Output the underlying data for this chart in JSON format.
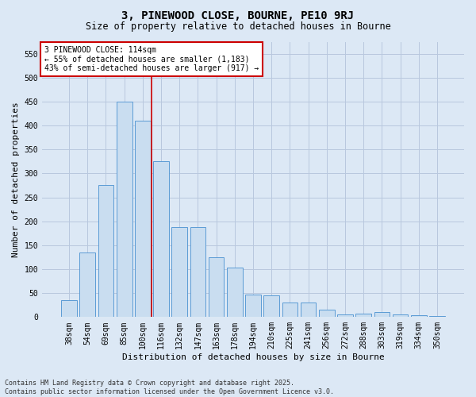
{
  "title1": "3, PINEWOOD CLOSE, BOURNE, PE10 9RJ",
  "title2": "Size of property relative to detached houses in Bourne",
  "xlabel": "Distribution of detached houses by size in Bourne",
  "ylabel": "Number of detached properties",
  "categories": [
    "38sqm",
    "54sqm",
    "69sqm",
    "85sqm",
    "100sqm",
    "116sqm",
    "132sqm",
    "147sqm",
    "163sqm",
    "178sqm",
    "194sqm",
    "210sqm",
    "225sqm",
    "241sqm",
    "256sqm",
    "272sqm",
    "288sqm",
    "303sqm",
    "319sqm",
    "334sqm",
    "350sqm"
  ],
  "values": [
    35,
    135,
    275,
    450,
    410,
    325,
    188,
    188,
    125,
    103,
    47,
    45,
    30,
    30,
    15,
    5,
    8,
    10,
    5,
    4,
    3
  ],
  "bar_color": "#c9ddf0",
  "bar_edge_color": "#5b9bd5",
  "grid_color": "#b8c8de",
  "background_color": "#dce8f5",
  "vline_x_index": 4.5,
  "vline_color": "#cc0000",
  "annotation_line1": "3 PINEWOOD CLOSE: 114sqm",
  "annotation_line2": "← 55% of detached houses are smaller (1,183)",
  "annotation_line3": "43% of semi-detached houses are larger (917) →",
  "annotation_box_color": "#ffffff",
  "annotation_box_edge": "#cc0000",
  "footer1": "Contains HM Land Registry data © Crown copyright and database right 2025.",
  "footer2": "Contains public sector information licensed under the Open Government Licence v3.0.",
  "ylim": [
    0,
    575
  ],
  "yticks": [
    0,
    50,
    100,
    150,
    200,
    250,
    300,
    350,
    400,
    450,
    500,
    550
  ],
  "title1_fontsize": 10,
  "title2_fontsize": 8.5,
  "ylabel_fontsize": 8,
  "xlabel_fontsize": 8,
  "tick_fontsize": 7,
  "annotation_fontsize": 7,
  "footer_fontsize": 6
}
